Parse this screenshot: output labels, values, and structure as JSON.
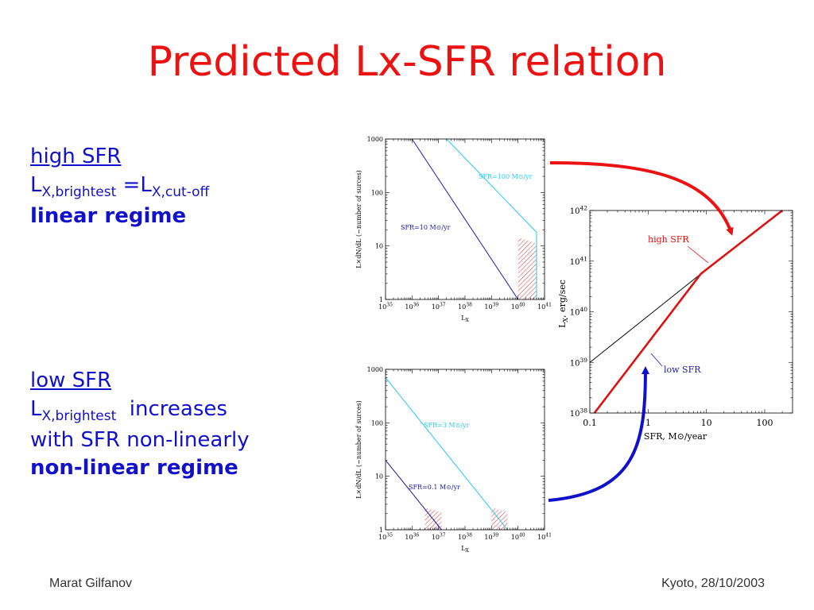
{
  "slide": {
    "title": "Predicted Lx-SFR relation",
    "high": {
      "heading": "high SFR",
      "l1": "L",
      "s1": "X,brightest",
      "eq": " =L",
      "s2": "X,cut-off",
      "regime": "linear regime"
    },
    "low": {
      "heading": "low SFR",
      "l1": "L",
      "s1": "X,brightest",
      "after": "  increases",
      "line2": "with SFR non-linearly",
      "regime": "non-linear regime"
    },
    "footer_left": "Marat Gilfanov",
    "footer_right": "Kyoto, 28/10/2003"
  },
  "chart_data": [
    {
      "type": "line",
      "id": "top-lf",
      "xlabel": "L",
      "xlabel_sub": "X",
      "ylabel": "L×dN/dL (~number of surces)",
      "xscale": "log",
      "yscale": "log",
      "xlim": [
        1e+35,
        1e+41
      ],
      "ylim": [
        1,
        1000
      ],
      "x_ticks": [
        "10^35",
        "10^36",
        "10^37",
        "10^38",
        "10^39",
        "10^40",
        "10^41"
      ],
      "y_ticks": [
        "1",
        "10",
        "100",
        "1000"
      ],
      "series": [
        {
          "name": "SFR=10 M⊙/yr",
          "color": "#1a1aaa",
          "points": [
            [
              1e+36,
              1000
            ],
            [
              1e+40,
              1
            ]
          ]
        },
        {
          "name": "SFR=100 M⊙/yr",
          "color": "#22ccee",
          "points": [
            [
              2e+37,
              1000
            ],
            [
              5e+40,
              18
            ],
            [
              5e+40,
              1
            ]
          ]
        }
      ],
      "shaded": [
        {
          "x": [
            1e+40,
            5e+40
          ],
          "color": "#dd3333"
        }
      ]
    },
    {
      "type": "line",
      "id": "bottom-lf",
      "xlabel": "L",
      "xlabel_sub": "X",
      "ylabel": "L×dN/dL (~number of surces)",
      "xscale": "log",
      "yscale": "log",
      "xlim": [
        1e+35,
        1e+41
      ],
      "ylim": [
        1,
        1000
      ],
      "x_ticks": [
        "10^35",
        "10^36",
        "10^37",
        "10^38",
        "10^39",
        "10^40",
        "10^41"
      ],
      "y_ticks": [
        "1",
        "10",
        "100",
        "1000"
      ],
      "series": [
        {
          "name": "SFR=0.1 M⊙/yr",
          "color": "#1a1aaa",
          "points": [
            [
              1e+35,
              20
            ],
            [
              1.3e+37,
              1
            ]
          ]
        },
        {
          "name": "SFR=3 M⊙/yr",
          "color": "#22ccee",
          "points": [
            [
              1e+35,
              700
            ],
            [
              4e+39,
              1
            ]
          ]
        }
      ],
      "shaded": [
        {
          "x": [
            3e+36,
            1.3e+37
          ],
          "color": "#dd3333"
        },
        {
          "x": [
            1e+39,
            4e+39
          ],
          "color": "#dd3333"
        }
      ]
    },
    {
      "type": "line",
      "id": "lx-sfr",
      "xlabel": "SFR, M⊙/year",
      "ylabel": "L",
      "ylabel_rest": ", erg/sec",
      "ylabel_sub": "X",
      "xscale": "log",
      "yscale": "log",
      "xlim": [
        0.1,
        300
      ],
      "ylim": [
        1e+38,
        1e+42
      ],
      "x_ticks": [
        "0.1",
        "1",
        "10",
        "100"
      ],
      "y_ticks": [
        "10^38",
        "10^39",
        "10^40",
        "10^41",
        "10^42"
      ],
      "series": [
        {
          "name": "",
          "color": "#111111",
          "points": [
            [
              0.1,
              1e+39
            ],
            [
              8,
              5.6e+40
            ]
          ]
        },
        {
          "name": "",
          "color": "#dd1111",
          "points": [
            [
              0.12,
              1e+38
            ],
            [
              8,
              5.6e+40
            ],
            [
              200,
              1e+42
            ]
          ]
        }
      ],
      "annotations": [
        {
          "text": "high SFR",
          "color": "#dd1111"
        },
        {
          "text": "low SFR",
          "color": "#1a1aaa"
        }
      ]
    }
  ]
}
